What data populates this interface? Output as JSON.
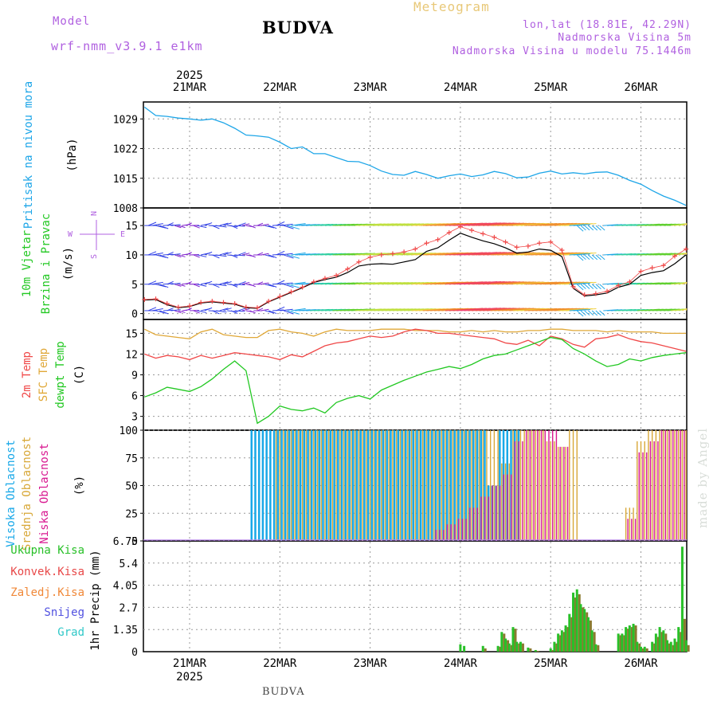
{
  "header": {
    "model_label": "Model",
    "model_name": "wrf-nmm_v3.9.1 e1km",
    "station": "BUDVA",
    "product": "Meteogram",
    "coords": "lon,lat (18.81E, 42.29N)",
    "elevation": "Nadmorska Visina 5m",
    "model_elevation": "Nadmorska Visina u modelu 75.1446m",
    "footer_station": "BUDVA",
    "watermark": "made by Angel",
    "year": "2025"
  },
  "colors": {
    "pressure": "#1ea6e8",
    "temp2m": "#f04848",
    "sfc_temp": "#e0a838",
    "dewpoint": "#22c822",
    "high_cloud": "#18a8e8",
    "mid_cloud": "#d8a838",
    "low_cloud": "#d81890",
    "total_precip": "#28c028",
    "conv_precip": "#e84848",
    "frozen_precip": "#f08838",
    "snow": "#5050e0",
    "graupel": "#30c8c8"
  },
  "days": [
    "21MAR",
    "22MAR",
    "23MAR",
    "24MAR",
    "25MAR",
    "26MAR"
  ],
  "chart_data": [
    {
      "type": "line",
      "panel": "pressure",
      "ylabel": "(hPa)",
      "side_labels": [
        {
          "text": "Pritisak na nivou mora",
          "color": "#1ea6e8"
        }
      ],
      "ylim": [
        1008,
        1033
      ],
      "yticks": [
        1008,
        1015,
        1022,
        1029
      ],
      "x_hours": [
        0,
        3,
        6,
        9,
        12,
        15,
        18,
        21,
        24,
        27,
        30,
        33,
        36,
        39,
        42,
        45,
        48,
        51,
        54,
        57,
        60,
        63,
        66,
        69,
        72,
        75,
        78,
        81,
        84,
        87,
        90,
        93,
        96,
        99,
        102,
        105,
        108,
        111,
        114,
        117,
        120,
        123,
        126,
        129,
        132,
        135,
        138,
        141,
        144
      ],
      "series": [
        {
          "values": [
            1031.8,
            1029.8,
            1029.6,
            1029.2,
            1029.0,
            1028.7,
            1029.0,
            1028.1,
            1026.8,
            1025.2,
            1025.0,
            1024.7,
            1023.5,
            1022.0,
            1022.4,
            1020.8,
            1020.8,
            1019.9,
            1019.0,
            1018.9,
            1018.0,
            1016.7,
            1015.9,
            1015.7,
            1016.6,
            1015.9,
            1015.0,
            1015.6,
            1016.0,
            1015.4,
            1015.8,
            1016.6,
            1016.1,
            1015.1,
            1015.3,
            1016.2,
            1016.7,
            1016.0,
            1016.3,
            1016.0,
            1016.4,
            1016.5,
            1015.7,
            1014.5,
            1013.6,
            1012.1,
            1010.8,
            1009.8,
            1008.6
          ]
        }
      ]
    },
    {
      "type": "line",
      "panel": "wind",
      "ylabel": "(m/s)",
      "side_labels": [
        {
          "text": "10m Vjetar",
          "color": "#22c822"
        },
        {
          "text": "Brzina i Pravac",
          "color": "#22c822"
        }
      ],
      "compass": {
        "N": "N",
        "W": "W",
        "E": "E",
        "S": "S"
      },
      "ylim": [
        -1,
        18
      ],
      "yticks": [
        0,
        5,
        10,
        15
      ],
      "x_hours": [
        0,
        3,
        6,
        9,
        12,
        15,
        18,
        21,
        24,
        27,
        30,
        33,
        36,
        39,
        42,
        45,
        48,
        51,
        54,
        57,
        60,
        63,
        66,
        69,
        72,
        75,
        78,
        81,
        84,
        87,
        90,
        93,
        96,
        99,
        102,
        105,
        108,
        111,
        114,
        117,
        120,
        123,
        126,
        129,
        132,
        135,
        138,
        141,
        144
      ],
      "series": [
        {
          "name_ref": "speed",
          "values": [
            2.3,
            2.4,
            1.5,
            1.0,
            1.2,
            1.8,
            2.0,
            1.8,
            1.6,
            1.0,
            0.9,
            2.0,
            2.8,
            3.6,
            4.4,
            5.3,
            5.8,
            6.2,
            7.0,
            8.1,
            8.4,
            8.5,
            8.4,
            8.8,
            9.2,
            10.6,
            11.2,
            12.5,
            13.7,
            13.0,
            12.4,
            11.9,
            11.2,
            10.3,
            10.5,
            11.0,
            10.8,
            9.7,
            4.3,
            3.0,
            3.2,
            3.5,
            4.5,
            5.0,
            6.5,
            7.0,
            7.3,
            8.5,
            10.0
          ]
        },
        {
          "name_ref": "gust",
          "values": [
            2.4,
            2.5,
            1.7,
            1.1,
            1.3,
            1.9,
            2.1,
            1.9,
            1.7,
            1.1,
            1.0,
            2.1,
            2.9,
            3.7,
            4.5,
            5.4,
            6.0,
            6.5,
            7.6,
            8.8,
            9.6,
            10.0,
            10.2,
            10.5,
            11.0,
            12.0,
            12.6,
            13.8,
            14.8,
            14.2,
            13.6,
            13.0,
            12.2,
            11.3,
            11.5,
            12.0,
            12.2,
            10.8,
            4.6,
            3.2,
            3.4,
            3.8,
            4.8,
            5.4,
            7.2,
            7.8,
            8.2,
            9.8,
            11.0
          ]
        }
      ],
      "barb_rows": [
        0.5,
        5,
        10,
        15
      ]
    },
    {
      "type": "line",
      "panel": "temperature",
      "ylabel": "(C)",
      "side_labels": [
        {
          "text": "2m Temp",
          "color": "#f04848"
        },
        {
          "text": "SFC Temp",
          "color": "#e0a838"
        },
        {
          "text": "dewpt Temp",
          "color": "#22c822"
        }
      ],
      "ylim": [
        1,
        17
      ],
      "yticks": [
        3,
        6,
        9,
        12,
        15
      ],
      "x_hours": [
        0,
        3,
        6,
        9,
        12,
        15,
        18,
        21,
        24,
        27,
        30,
        33,
        36,
        39,
        42,
        45,
        48,
        51,
        54,
        57,
        60,
        63,
        66,
        69,
        72,
        75,
        78,
        81,
        84,
        87,
        90,
        93,
        96,
        99,
        102,
        105,
        108,
        111,
        114,
        117,
        120,
        123,
        126,
        129,
        132,
        135,
        138,
        141,
        144
      ],
      "series": [
        {
          "name_ref": "temp2m",
          "values": [
            12.0,
            11.4,
            11.8,
            11.6,
            11.2,
            11.8,
            11.4,
            11.8,
            12.2,
            12.0,
            11.8,
            11.6,
            11.2,
            11.9,
            11.6,
            12.4,
            13.2,
            13.6,
            13.8,
            14.2,
            14.6,
            14.4,
            14.6,
            15.2,
            15.6,
            15.4,
            15.0,
            15.0,
            14.8,
            14.6,
            14.4,
            14.2,
            13.6,
            13.4,
            14.0,
            13.2,
            14.6,
            14.2,
            13.4,
            13.0,
            14.2,
            14.4,
            14.8,
            14.2,
            13.8,
            13.6,
            13.2,
            12.8,
            12.4
          ]
        },
        {
          "name_ref": "sfc_temp",
          "values": [
            15.6,
            14.8,
            14.6,
            14.4,
            14.2,
            15.2,
            15.6,
            14.8,
            14.6,
            14.4,
            14.4,
            15.4,
            15.6,
            15.2,
            15.0,
            14.6,
            15.2,
            15.6,
            15.4,
            15.4,
            15.4,
            15.6,
            15.6,
            15.6,
            15.4,
            15.4,
            15.4,
            15.2,
            15.2,
            15.4,
            15.2,
            15.4,
            15.2,
            15.2,
            15.4,
            15.4,
            15.6,
            15.6,
            15.4,
            15.4,
            15.4,
            15.2,
            15.4,
            15.2,
            15.2,
            15.2,
            15.0,
            15.0,
            15.0
          ]
        },
        {
          "name_ref": "dewpoint",
          "values": [
            5.8,
            6.4,
            7.2,
            6.9,
            6.6,
            7.3,
            8.4,
            9.8,
            11.0,
            9.6,
            2.0,
            3.0,
            4.5,
            4.0,
            3.8,
            4.2,
            3.5,
            5.0,
            5.6,
            6.0,
            5.5,
            6.8,
            7.5,
            8.2,
            8.8,
            9.4,
            9.8,
            10.2,
            9.9,
            10.5,
            11.3,
            11.8,
            12.0,
            12.6,
            13.2,
            13.8,
            14.4,
            14.1,
            12.8,
            12.0,
            11.0,
            10.2,
            10.5,
            11.3,
            11.0,
            11.5,
            11.8,
            12.0,
            12.2
          ]
        }
      ]
    },
    {
      "type": "bar",
      "panel": "clouds",
      "ylabel": "(%)",
      "side_labels": [
        {
          "text": "Visoka Oblacnost",
          "color": "#18a8e8"
        },
        {
          "text": "Srednja Oblacnost",
          "color": "#d8a838"
        },
        {
          "text": "Niska Oblacnost",
          "color": "#d81890"
        }
      ],
      "ylim": [
        0,
        100
      ],
      "yticks": [
        0,
        25,
        50,
        75,
        100
      ],
      "x_hours": [
        0,
        3,
        6,
        9,
        12,
        15,
        18,
        21,
        24,
        27,
        30,
        33,
        36,
        39,
        42,
        45,
        48,
        51,
        54,
        57,
        60,
        63,
        66,
        69,
        72,
        75,
        78,
        81,
        84,
        87,
        90,
        93,
        96,
        99,
        102,
        105,
        108,
        111,
        114,
        117,
        120,
        123,
        126,
        129,
        132,
        135,
        138,
        141,
        144
      ],
      "series": [
        {
          "name_ref": "high",
          "values": [
            0,
            0,
            0,
            0,
            0,
            0,
            0,
            0,
            0,
            0,
            100,
            100,
            100,
            100,
            100,
            100,
            100,
            100,
            100,
            100,
            100,
            100,
            100,
            100,
            100,
            100,
            100,
            100,
            100,
            100,
            100,
            50,
            100,
            100,
            0,
            0,
            0,
            0,
            0,
            0,
            0,
            0,
            0,
            0,
            0,
            0,
            0,
            0,
            0
          ]
        },
        {
          "name_ref": "mid",
          "values": [
            0,
            0,
            0,
            0,
            0,
            0,
            0,
            0,
            0,
            0,
            0,
            0,
            100,
            100,
            100,
            100,
            100,
            100,
            100,
            100,
            100,
            100,
            100,
            100,
            100,
            100,
            100,
            100,
            100,
            100,
            100,
            100,
            70,
            100,
            100,
            100,
            90,
            85,
            100,
            0,
            0,
            0,
            0,
            30,
            90,
            100,
            100,
            100,
            100
          ]
        },
        {
          "name_ref": "low",
          "values": [
            0,
            0,
            0,
            0,
            0,
            0,
            0,
            0,
            0,
            0,
            0,
            0,
            0,
            0,
            0,
            0,
            0,
            0,
            0,
            0,
            0,
            0,
            0,
            0,
            0,
            0,
            10,
            15,
            20,
            30,
            40,
            50,
            60,
            90,
            100,
            100,
            100,
            85,
            0,
            0,
            0,
            0,
            0,
            20,
            80,
            90,
            100,
            100,
            100
          ]
        }
      ]
    },
    {
      "type": "bar",
      "panel": "precipitation",
      "ylabel": "1hr Precip (mm)",
      "side_labels": [
        {
          "text": "Ukupna Kisa",
          "color": "#28c028"
        },
        {
          "text": "Konvek.Kisa",
          "color": "#e84848"
        },
        {
          "text": "Zaledj.Kisa",
          "color": "#f08838"
        },
        {
          "text": "Snijeg",
          "color": "#5050e0"
        },
        {
          "text": "Grad",
          "color": "#30c8c8"
        }
      ],
      "ylim": [
        0,
        6.75
      ],
      "yticks": [
        0,
        1.35,
        2.7,
        4.05,
        5.4,
        6.75
      ],
      "x_hours": [
        84,
        85,
        90,
        94,
        95,
        96,
        97,
        98,
        99,
        100,
        102,
        104,
        108,
        109,
        110,
        111,
        112,
        113,
        114,
        115,
        116,
        117,
        118,
        119,
        120,
        126,
        127,
        128,
        129,
        130,
        131,
        132,
        133,
        135,
        136,
        137,
        138,
        139,
        140,
        141,
        142,
        143,
        144
      ],
      "series": [
        {
          "name_ref": "total",
          "values": [
            0.45,
            0.35,
            0.35,
            0.35,
            1.2,
            0.8,
            0.5,
            1.5,
            0.6,
            0.6,
            0.25,
            0.1,
            0.2,
            0.6,
            1.1,
            1.3,
            1.6,
            2.3,
            3.6,
            3.8,
            2.9,
            2.6,
            2.1,
            1.3,
            0.45,
            1.1,
            1.1,
            1.5,
            1.6,
            1.7,
            0.6,
            0.3,
            0.3,
            0.6,
            1.1,
            1.5,
            1.3,
            0.7,
            0.6,
            0.8,
            1.5,
            6.4,
            0.7
          ]
        },
        {
          "name_ref": "convective",
          "values": [
            0.0,
            0.0,
            0.2,
            0.3,
            1.1,
            0.7,
            0.4,
            1.4,
            0.5,
            0.5,
            0.2,
            0.05,
            0.1,
            0.5,
            1.0,
            1.2,
            1.5,
            2.1,
            3.3,
            3.5,
            2.7,
            2.4,
            1.9,
            1.2,
            0.4,
            1.0,
            1.0,
            1.4,
            1.5,
            1.6,
            0.5,
            0.2,
            0.2,
            0.5,
            0.9,
            1.2,
            1.1,
            0.5,
            0.4,
            0.6,
            1.2,
            2.0,
            0.4
          ]
        }
      ]
    }
  ]
}
